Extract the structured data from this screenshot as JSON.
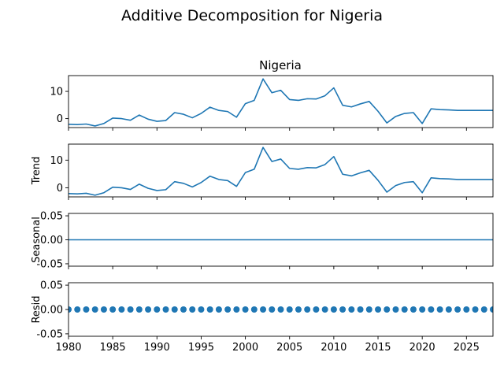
{
  "chart_data": {
    "type": "line",
    "suptitle": "Additive Decomposition for Nigeria",
    "x": [
      1980,
      1981,
      1982,
      1983,
      1984,
      1985,
      1986,
      1987,
      1988,
      1989,
      1990,
      1991,
      1992,
      1993,
      1994,
      1995,
      1996,
      1997,
      1998,
      1999,
      2000,
      2001,
      2002,
      2003,
      2004,
      2005,
      2006,
      2007,
      2008,
      2009,
      2010,
      2011,
      2012,
      2013,
      2014,
      2015,
      2016,
      2017,
      2018,
      2019,
      2020,
      2021,
      2022,
      2023,
      2024,
      2025,
      2026,
      2027,
      2028
    ],
    "xlim": [
      1980,
      2028
    ],
    "xticks": [
      "1980",
      "1985",
      "1990",
      "1995",
      "2000",
      "2005",
      "2010",
      "2015",
      "2020",
      "2025"
    ],
    "panels": [
      {
        "name": "observed",
        "title": "Nigeria",
        "ylabel": "",
        "style": "line",
        "ylim": [
          -3.3,
          15.8
        ],
        "yticks": [
          "0",
          "10"
        ],
        "values": [
          -2.1,
          -2.2,
          -2.0,
          -2.7,
          -1.8,
          0.2,
          0.0,
          -0.6,
          1.3,
          -0.2,
          -1.0,
          -0.7,
          2.2,
          1.6,
          0.3,
          1.9,
          4.2,
          3.0,
          2.6,
          0.5,
          5.5,
          6.7,
          14.6,
          9.5,
          10.4,
          7.0,
          6.7,
          7.3,
          7.2,
          8.4,
          11.3,
          4.9,
          4.3,
          5.4,
          6.3,
          2.7,
          -1.6,
          0.8,
          1.9,
          2.2,
          -1.8,
          3.6,
          3.3,
          3.2,
          3.0,
          3.0,
          3.0,
          3.0,
          3.0
        ]
      },
      {
        "name": "trend",
        "title": "",
        "ylabel": "Trend",
        "style": "line",
        "ylim": [
          -3.3,
          15.8
        ],
        "yticks": [
          "0",
          "10"
        ],
        "values": [
          -2.1,
          -2.2,
          -2.0,
          -2.7,
          -1.8,
          0.2,
          0.0,
          -0.6,
          1.3,
          -0.2,
          -1.0,
          -0.7,
          2.2,
          1.6,
          0.3,
          1.9,
          4.2,
          3.0,
          2.6,
          0.5,
          5.5,
          6.7,
          14.6,
          9.5,
          10.4,
          7.0,
          6.7,
          7.3,
          7.2,
          8.4,
          11.3,
          4.9,
          4.3,
          5.4,
          6.3,
          2.7,
          -1.6,
          0.8,
          1.9,
          2.2,
          -1.8,
          3.6,
          3.3,
          3.2,
          3.0,
          3.0,
          3.0,
          3.0,
          3.0
        ]
      },
      {
        "name": "seasonal",
        "title": "",
        "ylabel": "Seasonal",
        "style": "line",
        "ylim": [
          -0.055,
          0.055
        ],
        "yticks": [
          "0.05",
          "0.00",
          "-0.05"
        ],
        "values": [
          0,
          0,
          0,
          0,
          0,
          0,
          0,
          0,
          0,
          0,
          0,
          0,
          0,
          0,
          0,
          0,
          0,
          0,
          0,
          0,
          0,
          0,
          0,
          0,
          0,
          0,
          0,
          0,
          0,
          0,
          0,
          0,
          0,
          0,
          0,
          0,
          0,
          0,
          0,
          0,
          0,
          0,
          0,
          0,
          0,
          0,
          0,
          0,
          0
        ]
      },
      {
        "name": "resid",
        "title": "",
        "ylabel": "Resid",
        "style": "markers",
        "ylim": [
          -0.055,
          0.055
        ],
        "yticks": [
          "0.05",
          "0.00",
          "-0.05"
        ],
        "values": [
          0,
          0,
          0,
          0,
          0,
          0,
          0,
          0,
          0,
          0,
          0,
          0,
          0,
          0,
          0,
          0,
          0,
          0,
          0,
          0,
          0,
          0,
          0,
          0,
          0,
          0,
          0,
          0,
          0,
          0,
          0,
          0,
          0,
          0,
          0,
          0,
          0,
          0,
          0,
          0,
          0,
          0,
          0,
          0,
          0,
          0,
          0,
          0,
          0
        ]
      }
    ],
    "colors": {
      "line": "#1f77b4",
      "axes": "#000000"
    }
  }
}
